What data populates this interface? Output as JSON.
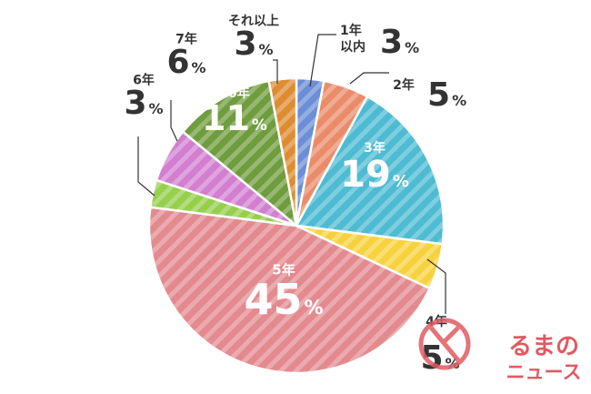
{
  "chart_data": {
    "type": "pie",
    "title": "",
    "slices": [
      {
        "label": "1年以内",
        "value": 3,
        "value_label": "3",
        "unit": "%",
        "color": "#6b8ed6"
      },
      {
        "label": "2年",
        "value": 5,
        "value_label": "5",
        "unit": "%",
        "color": "#ea8c6a"
      },
      {
        "label": "3年",
        "value": 19,
        "value_label": "19",
        "unit": "%",
        "color": "#4ebbd3"
      },
      {
        "label": "4年",
        "value": 5,
        "value_label": "5",
        "unit": "%",
        "color": "#f7d23e"
      },
      {
        "label": "5年",
        "value": 45,
        "value_label": "45",
        "unit": "%",
        "color": "#e38a8f"
      },
      {
        "label": "6年",
        "value": 3,
        "value_label": "3",
        "unit": "%",
        "color": "#96cf4c"
      },
      {
        "label": "7年",
        "value": 6,
        "value_label": "6",
        "unit": "%",
        "color": "#d27fd0"
      },
      {
        "label": "10年",
        "value": 11,
        "value_label": "11",
        "unit": "%",
        "color": "#6f9c3d"
      },
      {
        "label": "それ以上",
        "value": 3,
        "value_label": "3",
        "unit": "%",
        "color": "#dd8c32"
      }
    ]
  },
  "watermark": {
    "text_top": "るまの",
    "text_bottom": "ニュース",
    "color": "#e05a63"
  }
}
